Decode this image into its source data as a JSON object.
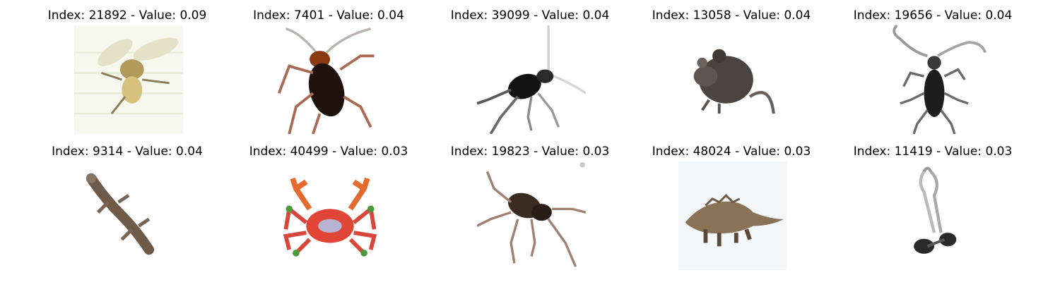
{
  "panels": [
    {
      "title": "Index: 21892 - Value: 0.09",
      "subject_icon": "fly-icon"
    },
    {
      "title": "Index: 7401 - Value: 0.04",
      "subject_icon": "cockroach-icon"
    },
    {
      "title": "Index: 39099 - Value: 0.04",
      "subject_icon": "beetle-icon"
    },
    {
      "title": "Index: 13058 - Value: 0.04",
      "subject_icon": "mouse-icon"
    },
    {
      "title": "Index: 19656 - Value: 0.04",
      "subject_icon": "longhorn-beetle-icon"
    },
    {
      "title": "Index: 9314 - Value: 0.04",
      "subject_icon": "lizard-icon"
    },
    {
      "title": "Index: 40499 - Value: 0.03",
      "subject_icon": "crab-icon"
    },
    {
      "title": "Index: 19823 - Value: 0.03",
      "subject_icon": "spider-icon"
    },
    {
      "title": "Index: 48024 - Value: 0.03",
      "subject_icon": "dinosaur-icon"
    },
    {
      "title": "Index: 11419 - Value: 0.03",
      "subject_icon": "scissors-icon"
    }
  ]
}
